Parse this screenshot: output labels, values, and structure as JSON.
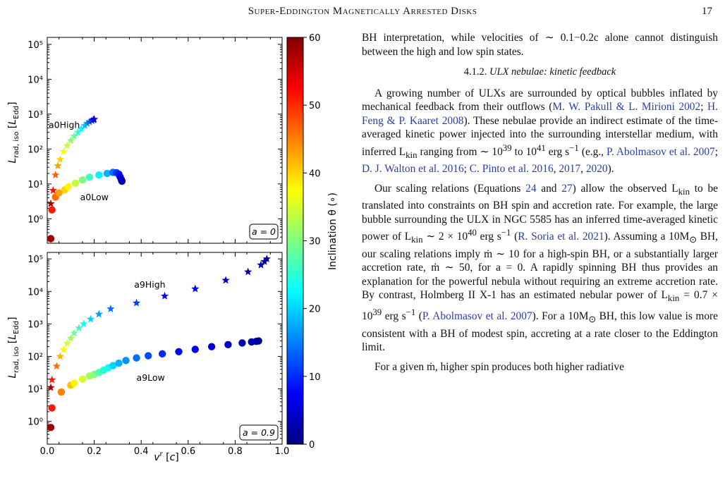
{
  "header": {
    "running_title": "Super-Eddington Magnetically Arrested Disks",
    "page_number": "17"
  },
  "figure": {
    "xlabel": "v^r [c]",
    "ylabel": "L_rad, iso [L_Edd]",
    "colorbar_label": "Inclination θ (∘)",
    "colorbar_range": [
      0,
      60
    ],
    "colorbar_ticks": [
      "0",
      "10",
      "20",
      "30",
      "40",
      "50",
      "60"
    ],
    "x_ticks": [
      "0.0",
      "0.2",
      "0.4",
      "0.6",
      "0.8",
      "1.0"
    ],
    "y_ticks": [
      "10^0",
      "10^1",
      "10^2",
      "10^3",
      "10^4",
      "10^5"
    ],
    "colormap": [
      "#00007f",
      "#0000ff",
      "#007fff",
      "#00ffff",
      "#7fff7f",
      "#ffff00",
      "#ff7f00",
      "#ff0000",
      "#7f0000"
    ]
  },
  "chart_data": [
    {
      "type": "scatter",
      "panel_label": "a = 0",
      "xlim": [
        0,
        1.0
      ],
      "ylim_log10": [
        -0.7,
        5.2
      ],
      "series": [
        {
          "name": "a0High",
          "marker": "star",
          "points": [
            {
              "x": 0.015,
              "y": 2.7,
              "inc": 58
            },
            {
              "x": 0.025,
              "y": 6.5,
              "inc": 52
            },
            {
              "x": 0.035,
              "y": 18,
              "inc": 47
            },
            {
              "x": 0.045,
              "y": 33,
              "inc": 43
            },
            {
              "x": 0.055,
              "y": 50,
              "inc": 40
            },
            {
              "x": 0.07,
              "y": 85,
              "inc": 37
            },
            {
              "x": 0.085,
              "y": 125,
              "inc": 34
            },
            {
              "x": 0.1,
              "y": 175,
              "inc": 31
            },
            {
              "x": 0.115,
              "y": 235,
              "inc": 28
            },
            {
              "x": 0.13,
              "y": 300,
              "inc": 25
            },
            {
              "x": 0.145,
              "y": 380,
              "inc": 22
            },
            {
              "x": 0.16,
              "y": 470,
              "inc": 19
            },
            {
              "x": 0.17,
              "y": 540,
              "inc": 16
            },
            {
              "x": 0.18,
              "y": 600,
              "inc": 13
            },
            {
              "x": 0.19,
              "y": 650,
              "inc": 10
            },
            {
              "x": 0.197,
              "y": 690,
              "inc": 7
            },
            {
              "x": 0.2,
              "y": 710,
              "inc": 4
            }
          ]
        },
        {
          "name": "a0Low",
          "marker": "circle",
          "points": [
            {
              "x": 0.015,
              "y": 0.27,
              "inc": 58
            },
            {
              "x": 0.02,
              "y": 1.8,
              "inc": 51
            },
            {
              "x": 0.035,
              "y": 4.2,
              "inc": 46
            },
            {
              "x": 0.05,
              "y": 5.5,
              "inc": 43
            },
            {
              "x": 0.075,
              "y": 6.8,
              "inc": 40
            },
            {
              "x": 0.09,
              "y": 8.3,
              "inc": 38
            },
            {
              "x": 0.12,
              "y": 10.5,
              "inc": 34
            },
            {
              "x": 0.15,
              "y": 13,
              "inc": 30
            },
            {
              "x": 0.18,
              "y": 15.5,
              "inc": 26
            },
            {
              "x": 0.22,
              "y": 18,
              "inc": 22
            },
            {
              "x": 0.255,
              "y": 20,
              "inc": 18
            },
            {
              "x": 0.28,
              "y": 21.5,
              "inc": 14
            },
            {
              "x": 0.295,
              "y": 21,
              "inc": 11
            },
            {
              "x": 0.305,
              "y": 19,
              "inc": 9
            },
            {
              "x": 0.31,
              "y": 16,
              "inc": 7
            },
            {
              "x": 0.315,
              "y": 13.5,
              "inc": 5
            },
            {
              "x": 0.318,
              "y": 12,
              "inc": 3
            }
          ]
        }
      ]
    },
    {
      "type": "scatter",
      "panel_label": "a = 0.9",
      "xlim": [
        0,
        1.0
      ],
      "ylim_log10": [
        -0.7,
        5.2
      ],
      "series": [
        {
          "name": "a9High",
          "marker": "star",
          "points": [
            {
              "x": 0.015,
              "y": 11,
              "inc": 58
            },
            {
              "x": 0.02,
              "y": 19,
              "inc": 51
            },
            {
              "x": 0.04,
              "y": 50,
              "inc": 46
            },
            {
              "x": 0.055,
              "y": 100,
              "inc": 42
            },
            {
              "x": 0.07,
              "y": 160,
              "inc": 38
            },
            {
              "x": 0.085,
              "y": 250,
              "inc": 35
            },
            {
              "x": 0.1,
              "y": 360,
              "inc": 32
            },
            {
              "x": 0.115,
              "y": 520,
              "inc": 29
            },
            {
              "x": 0.135,
              "y": 750,
              "inc": 26
            },
            {
              "x": 0.155,
              "y": 1000,
              "inc": 23
            },
            {
              "x": 0.185,
              "y": 1400,
              "inc": 20
            },
            {
              "x": 0.22,
              "y": 2000,
              "inc": 17
            },
            {
              "x": 0.27,
              "y": 2900,
              "inc": 14
            },
            {
              "x": 0.38,
              "y": 4400,
              "inc": 11
            },
            {
              "x": 0.5,
              "y": 7200,
              "inc": 8
            },
            {
              "x": 0.63,
              "y": 12000,
              "inc": 6
            },
            {
              "x": 0.76,
              "y": 22000,
              "inc": 4
            },
            {
              "x": 0.855,
              "y": 40000,
              "inc": 3
            },
            {
              "x": 0.91,
              "y": 65000,
              "inc": 2
            },
            {
              "x": 0.925,
              "y": 83000,
              "inc": 1.5
            },
            {
              "x": 0.935,
              "y": 100000,
              "inc": 1
            }
          ]
        },
        {
          "name": "a9Low",
          "marker": "circle",
          "points": [
            {
              "x": 0.015,
              "y": 0.65,
              "inc": 58
            },
            {
              "x": 0.02,
              "y": 2.6,
              "inc": 51
            },
            {
              "x": 0.06,
              "y": 8,
              "inc": 45
            },
            {
              "x": 0.1,
              "y": 13,
              "inc": 41
            },
            {
              "x": 0.115,
              "y": 15,
              "inc": 38
            },
            {
              "x": 0.15,
              "y": 20,
              "inc": 35
            },
            {
              "x": 0.18,
              "y": 25,
              "inc": 32
            },
            {
              "x": 0.2,
              "y": 28,
              "inc": 30
            },
            {
              "x": 0.22,
              "y": 32,
              "inc": 27
            },
            {
              "x": 0.24,
              "y": 38,
              "inc": 25
            },
            {
              "x": 0.26,
              "y": 45,
              "inc": 23
            },
            {
              "x": 0.28,
              "y": 52,
              "inc": 20
            },
            {
              "x": 0.305,
              "y": 62,
              "inc": 18
            },
            {
              "x": 0.335,
              "y": 75,
              "inc": 16
            },
            {
              "x": 0.38,
              "y": 90,
              "inc": 14
            },
            {
              "x": 0.43,
              "y": 105,
              "inc": 12
            },
            {
              "x": 0.49,
              "y": 120,
              "inc": 10
            },
            {
              "x": 0.56,
              "y": 140,
              "inc": 8
            },
            {
              "x": 0.63,
              "y": 165,
              "inc": 6
            },
            {
              "x": 0.7,
              "y": 200,
              "inc": 5
            },
            {
              "x": 0.77,
              "y": 230,
              "inc": 4
            },
            {
              "x": 0.83,
              "y": 260,
              "inc": 3
            },
            {
              "x": 0.87,
              "y": 280,
              "inc": 2.5
            },
            {
              "x": 0.89,
              "y": 290,
              "inc": 2
            },
            {
              "x": 0.9,
              "y": 300,
              "inc": 1.5
            }
          ]
        }
      ]
    }
  ],
  "text_column": {
    "p1": "BH interpretation, while velocities of ∼ 0.1−0.2c alone cannot distinguish between the high and low spin states.",
    "heading_number": "4.1.2.",
    "heading_title": "ULX nebulae: kinetic feedback",
    "p2_a": "A growing number of ULXs are surrounded by optical bubbles inflated by mechanical feedback from their outflows (",
    "p2_cite1": "M. W. Pakull & L. Mirioni 2002",
    "p2_b": "; ",
    "p2_cite2": "H. Feng & P. Kaaret 2008",
    "p2_c": "). These nebulae provide an indirect estimate of the time-averaged kinetic power injected into the surrounding interstellar medium, with inferred L",
    "p2_sub1": "kin",
    "p2_d": " ranging from ∼ 10",
    "p2_sup1": "39",
    "p2_e": " to 10",
    "p2_sup2": "41",
    "p2_f": " erg s",
    "p2_sup3": "−1",
    "p2_g": " (e.g., ",
    "p2_cite3": "P. Abolmasov et al. 2007",
    "p2_h": "; ",
    "p2_cite4": "D. J. Walton et al. 2016",
    "p2_i": "; ",
    "p2_cite5": "C. Pinto et al. 2016",
    "p2_j": ", ",
    "p2_cite6": "2017",
    "p2_k": ", ",
    "p2_cite7": "2020",
    "p2_l": ").",
    "p3_a": "Our scaling relations (Equations ",
    "p3_eq1": "24",
    "p3_b": " and ",
    "p3_eq2": "27",
    "p3_c": ") allow the observed L",
    "p3_sub1": "kin",
    "p3_d": " to be translated into constraints on BH spin and accretion rate. For example, the large bubble surrounding the ULX in NGC 5585 has an inferred time-averaged kinetic power of L",
    "p3_sub2": "kin",
    "p3_e": " ∼ 2 × 10",
    "p3_sup1": "40",
    "p3_f": " erg s",
    "p3_sup2": "−1",
    "p3_g": " (",
    "p3_cite1": "R. Soria et al. 2021",
    "p3_h": "). Assuming a 10M",
    "p3_sub3": "⊙",
    "p3_i": " BH, our scaling relations imply ṁ ∼ 10 for a high-spin BH, or a substantially larger accretion rate, ṁ ∼ 50, for a = 0. A rapidly spinning BH thus provides an explanation for the powerful nebula without requiring an extreme accretion rate. By contrast, Holmberg II X-1 has an estimated nebular power of L",
    "p3_sub4": "kin",
    "p3_j": " = 0.7 × 10",
    "p3_sup3": "39",
    "p3_k": " erg s",
    "p3_sup4": "−1",
    "p3_l": " (",
    "p3_cite2": "P. Abolmasov et al. 2007",
    "p3_m": "). For a 10M",
    "p3_sub5": "⊙",
    "p3_n": " BH, this low value is more consistent with a BH of modest spin, accreting at a rate closer to the Eddington limit.",
    "p4": "For a given ṁ, higher spin produces both higher radiative"
  }
}
